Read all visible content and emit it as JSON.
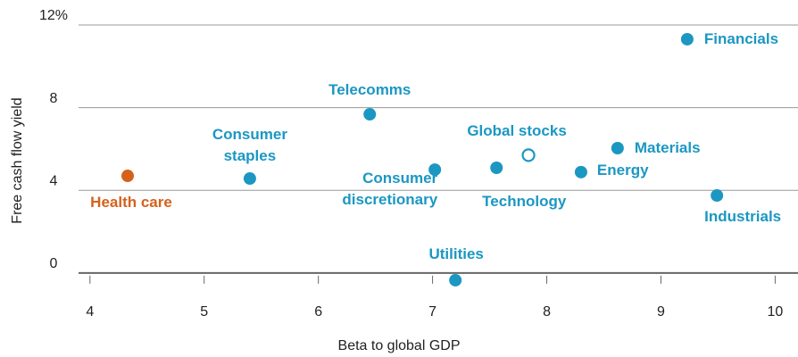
{
  "chart_data": {
    "type": "scatter",
    "xlabel": "Beta to global GDP",
    "ylabel": "Free cash flow yield",
    "labels": [
      "Health care",
      "Consumer\nstaples",
      "Telecomms",
      "Consumer\ndiscretionary",
      "Utilities",
      "Technology",
      "Global stocks",
      "Energy",
      "Materials",
      "Industrials",
      "Financials"
    ],
    "x": [
      4.33,
      5.4,
      6.45,
      7.02,
      7.2,
      7.56,
      7.84,
      8.3,
      8.62,
      9.49,
      9.23
    ],
    "values": [
      4.7,
      4.57,
      7.68,
      5.0,
      -0.35,
      5.09,
      5.7,
      4.88,
      6.04,
      3.75,
      11.31
    ],
    "colors": [
      "#d4621c",
      "#1b97c2",
      "#1b97c2",
      "#1b97c2",
      "#1b97c2",
      "#1b97c2",
      "#1b97c2",
      "#1b97c2",
      "#1b97c2",
      "#1b97c2",
      "#1b97c2"
    ],
    "filled": [
      true,
      true,
      true,
      true,
      true,
      true,
      false,
      true,
      true,
      true,
      true
    ],
    "xlim": [
      3.9,
      10.2
    ],
    "ylim": [
      -1,
      12
    ],
    "xticks": [
      4,
      5,
      6,
      7,
      8,
      9,
      10
    ],
    "yticks": [
      0,
      4,
      8,
      {
        "value": 12,
        "label": "12%"
      }
    ],
    "grid": true
  }
}
